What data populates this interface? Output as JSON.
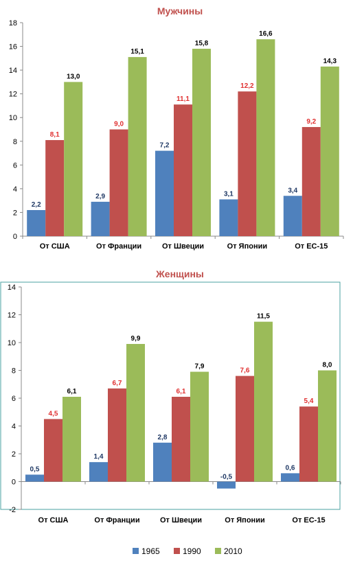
{
  "chart_data": [
    {
      "type": "bar",
      "title": "Мужчины",
      "categories": [
        "От США",
        "От Франции",
        "От Швеции",
        "От Японии",
        "От ЕС-15"
      ],
      "ylim": [
        0,
        18
      ],
      "yticks": [
        "0",
        "2",
        "4",
        "6",
        "8",
        "10",
        "12",
        "14",
        "16",
        "18"
      ],
      "grid": false,
      "series": [
        {
          "name": "1965",
          "color": "#4f81bd",
          "label_color": "#1f3864",
          "values": [
            2.2,
            2.9,
            7.2,
            3.1,
            3.4
          ],
          "labels": [
            "2,2",
            "2,9",
            "7,2",
            "3,1",
            "3,4"
          ]
        },
        {
          "name": "1990",
          "color": "#c0504d",
          "label_color": "#e03030",
          "values": [
            8.1,
            9.0,
            11.1,
            12.2,
            9.2
          ],
          "labels": [
            "8,1",
            "9,0",
            "11,1",
            "12,2",
            "9,2"
          ]
        },
        {
          "name": "2010",
          "color": "#9bbb59",
          "label_color": "#000000",
          "values": [
            13.0,
            15.1,
            15.8,
            16.6,
            14.3
          ],
          "labels": [
            "13,0",
            "15,1",
            "15,8",
            "16,6",
            "14,3"
          ]
        }
      ]
    },
    {
      "type": "bar",
      "title": "Женщины",
      "categories": [
        "От США",
        "От Франции",
        "От Швеции",
        "От Японии",
        "От ЕС-15"
      ],
      "ylim": [
        -2,
        14
      ],
      "yticks": [
        "-2",
        "0",
        "2",
        "4",
        "6",
        "8",
        "10",
        "12",
        "14"
      ],
      "grid": false,
      "legend_position": "bottom",
      "series": [
        {
          "name": "1965",
          "color": "#4f81bd",
          "label_color": "#1f3864",
          "values": [
            0.5,
            1.4,
            2.8,
            -0.5,
            0.6
          ],
          "labels": [
            "0,5",
            "1,4",
            "2,8",
            "-0,5",
            "0,6"
          ]
        },
        {
          "name": "1990",
          "color": "#c0504d",
          "label_color": "#e03030",
          "values": [
            4.5,
            6.7,
            6.1,
            7.6,
            5.4
          ],
          "labels": [
            "4,5",
            "6,7",
            "6,1",
            "7,6",
            "5,4"
          ]
        },
        {
          "name": "2010",
          "color": "#9bbb59",
          "label_color": "#000000",
          "values": [
            6.1,
            9.9,
            7.9,
            11.5,
            8.0
          ],
          "labels": [
            "6,1",
            "9,9",
            "7,9",
            "11,5",
            "8,0"
          ]
        }
      ]
    }
  ],
  "legend": [
    {
      "name": "1965",
      "color": "#4f81bd"
    },
    {
      "name": "1990",
      "color": "#c0504d"
    },
    {
      "name": "2010",
      "color": "#9bbb59"
    }
  ]
}
